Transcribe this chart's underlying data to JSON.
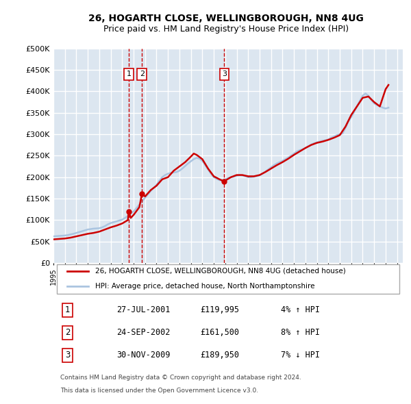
{
  "title": "26, HOGARTH CLOSE, WELLINGBOROUGH, NN8 4UG",
  "subtitle": "Price paid vs. HM Land Registry's House Price Index (HPI)",
  "background_color": "#ffffff",
  "plot_bg_color": "#dce6f0",
  "grid_color": "#ffffff",
  "ylabel": "",
  "ylim": [
    0,
    500000
  ],
  "yticks": [
    0,
    50000,
    100000,
    150000,
    200000,
    250000,
    300000,
    350000,
    400000,
    450000,
    500000
  ],
  "ytick_labels": [
    "£0",
    "£50K",
    "£100K",
    "£150K",
    "£200K",
    "£250K",
    "£300K",
    "£350K",
    "£400K",
    "£450K",
    "£500K"
  ],
  "hpi_color": "#aac4e0",
  "price_color": "#cc0000",
  "vline_color": "#cc0000",
  "sale_marker_color": "#cc0000",
  "transactions": [
    {
      "date_num": 2001.57,
      "price": 119995,
      "label": "1"
    },
    {
      "date_num": 2002.73,
      "price": 161500,
      "label": "2"
    },
    {
      "date_num": 2009.92,
      "price": 189950,
      "label": "3"
    }
  ],
  "transaction_table": [
    {
      "num": "1",
      "date": "27-JUL-2001",
      "price": "£119,995",
      "hpi": "4% ↑ HPI"
    },
    {
      "num": "2",
      "date": "24-SEP-2002",
      "price": "£161,500",
      "hpi": "8% ↑ HPI"
    },
    {
      "num": "3",
      "date": "30-NOV-2009",
      "price": "£189,950",
      "hpi": "7% ↓ HPI"
    }
  ],
  "legend_entries": [
    {
      "label": "26, HOGARTH CLOSE, WELLINGBOROUGH, NN8 4UG (detached house)",
      "color": "#cc0000"
    },
    {
      "label": "HPI: Average price, detached house, North Northamptonshire",
      "color": "#aac4e0"
    }
  ],
  "footer": [
    "Contains HM Land Registry data © Crown copyright and database right 2024.",
    "This data is licensed under the Open Government Licence v3.0."
  ],
  "hpi_data": {
    "years": [
      1995.0,
      1995.25,
      1995.5,
      1995.75,
      1996.0,
      1996.25,
      1996.5,
      1996.75,
      1997.0,
      1997.25,
      1997.5,
      1997.75,
      1998.0,
      1998.25,
      1998.5,
      1998.75,
      1999.0,
      1999.25,
      1999.5,
      1999.75,
      2000.0,
      2000.25,
      2000.5,
      2000.75,
      2001.0,
      2001.25,
      2001.5,
      2001.75,
      2002.0,
      2002.25,
      2002.5,
      2002.75,
      2003.0,
      2003.25,
      2003.5,
      2003.75,
      2004.0,
      2004.25,
      2004.5,
      2004.75,
      2005.0,
      2005.25,
      2005.5,
      2005.75,
      2006.0,
      2006.25,
      2006.5,
      2006.75,
      2007.0,
      2007.25,
      2007.5,
      2007.75,
      2008.0,
      2008.25,
      2008.5,
      2008.75,
      2009.0,
      2009.25,
      2009.5,
      2009.75,
      2010.0,
      2010.25,
      2010.5,
      2010.75,
      2011.0,
      2011.25,
      2011.5,
      2011.75,
      2012.0,
      2012.25,
      2012.5,
      2012.75,
      2013.0,
      2013.25,
      2013.5,
      2013.75,
      2014.0,
      2014.25,
      2014.5,
      2014.75,
      2015.0,
      2015.25,
      2015.5,
      2015.75,
      2016.0,
      2016.25,
      2016.5,
      2016.75,
      2017.0,
      2017.25,
      2017.5,
      2017.75,
      2018.0,
      2018.25,
      2018.5,
      2018.75,
      2019.0,
      2019.25,
      2019.5,
      2019.75,
      2020.0,
      2020.25,
      2020.5,
      2020.75,
      2021.0,
      2021.25,
      2021.5,
      2021.75,
      2022.0,
      2022.25,
      2022.5,
      2022.75,
      2023.0,
      2023.25,
      2023.5,
      2023.75,
      2024.0,
      2024.25
    ],
    "values": [
      62000,
      62500,
      63000,
      63500,
      64000,
      65000,
      66500,
      68000,
      70000,
      72000,
      74000,
      76000,
      78000,
      79000,
      80000,
      80500,
      81000,
      83000,
      86000,
      90000,
      93000,
      95000,
      97000,
      99000,
      101000,
      105000,
      110000,
      115000,
      120000,
      128000,
      136000,
      144000,
      152000,
      160000,
      168000,
      175000,
      182000,
      192000,
      200000,
      205000,
      208000,
      210000,
      211000,
      212000,
      215000,
      220000,
      226000,
      232000,
      237000,
      242000,
      245000,
      243000,
      238000,
      228000,
      218000,
      208000,
      200000,
      196000,
      193000,
      192000,
      195000,
      198000,
      200000,
      201000,
      203000,
      205000,
      204000,
      202000,
      200000,
      200000,
      201000,
      202000,
      204000,
      208000,
      213000,
      218000,
      223000,
      228000,
      232000,
      235000,
      238000,
      242000,
      246000,
      250000,
      255000,
      260000,
      263000,
      265000,
      268000,
      272000,
      276000,
      279000,
      281000,
      283000,
      285000,
      286000,
      288000,
      292000,
      295000,
      298000,
      300000,
      302000,
      315000,
      330000,
      340000,
      352000,
      365000,
      378000,
      390000,
      395000,
      390000,
      380000,
      372000,
      368000,
      365000,
      362000,
      360000,
      362000
    ]
  },
  "price_series": {
    "years": [
      1995.0,
      1995.5,
      1996.0,
      1996.5,
      1997.0,
      1997.5,
      1998.0,
      1998.5,
      1999.0,
      1999.5,
      2000.0,
      2000.5,
      2001.0,
      2001.5,
      2001.57,
      2001.75,
      2002.0,
      2002.5,
      2002.73,
      2003.0,
      2003.5,
      2004.0,
      2004.5,
      2005.0,
      2005.5,
      2006.0,
      2006.5,
      2007.0,
      2007.25,
      2007.5,
      2008.0,
      2008.5,
      2009.0,
      2009.5,
      2009.92,
      2010.0,
      2010.5,
      2011.0,
      2011.5,
      2012.0,
      2012.5,
      2013.0,
      2013.5,
      2014.0,
      2014.5,
      2015.0,
      2015.5,
      2016.0,
      2016.5,
      2017.0,
      2017.5,
      2018.0,
      2018.5,
      2019.0,
      2019.5,
      2020.0,
      2020.5,
      2021.0,
      2021.5,
      2022.0,
      2022.5,
      2023.0,
      2023.5,
      2024.0,
      2024.25
    ],
    "values": [
      55000,
      56000,
      57000,
      59000,
      62000,
      65000,
      68000,
      70000,
      73000,
      78000,
      83000,
      87000,
      92000,
      100000,
      119995,
      105000,
      112000,
      130000,
      161500,
      155000,
      170000,
      180000,
      195000,
      200000,
      215000,
      225000,
      235000,
      248000,
      255000,
      252000,
      242000,
      220000,
      202000,
      195000,
      189950,
      192000,
      200000,
      205000,
      205000,
      202000,
      202000,
      205000,
      212000,
      220000,
      228000,
      235000,
      243000,
      252000,
      260000,
      268000,
      275000,
      280000,
      283000,
      287000,
      292000,
      298000,
      318000,
      345000,
      365000,
      385000,
      388000,
      375000,
      365000,
      405000,
      415000
    ]
  }
}
